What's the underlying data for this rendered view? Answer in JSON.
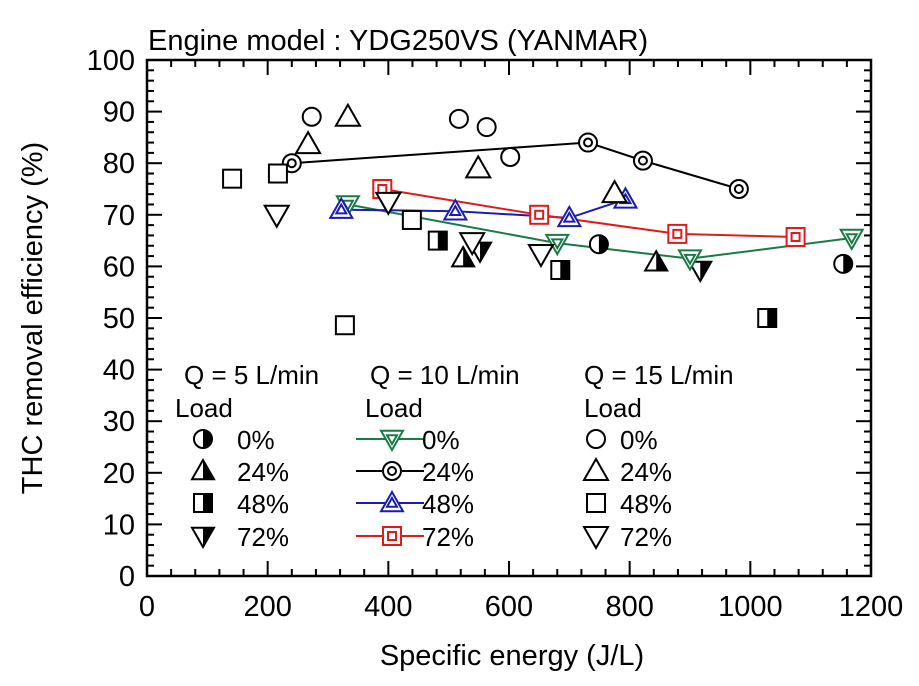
{
  "chart_data": {
    "type": "scatter",
    "title": "Engine model : YDG250VS (YANMAR)",
    "xlabel": "Specific energy (J/L)",
    "ylabel": "THC removal efficiency (%)",
    "xlim": [
      0,
      1200
    ],
    "ylim": [
      0,
      100
    ],
    "xticks": [
      0,
      200,
      400,
      600,
      800,
      1000,
      1200
    ],
    "yticks": [
      0,
      10,
      20,
      30,
      40,
      50,
      60,
      70,
      80,
      90,
      100
    ],
    "grid": false,
    "legend_placement": "lower-center",
    "legend_groups": [
      {
        "header": "Q = 5 L/min",
        "sub": "Load"
      },
      {
        "header": "Q = 10 L/min",
        "sub": "Load"
      },
      {
        "header": "Q = 15 L/min",
        "sub": "Load"
      }
    ],
    "series": [
      {
        "name": "Q=5 0%",
        "group": 0,
        "label": "0%",
        "marker": "circle-half",
        "color": "#000000",
        "line": false,
        "points": [
          [
            749,
            64.3
          ],
          [
            1154,
            60.5
          ]
        ]
      },
      {
        "name": "Q=5 24%",
        "group": 0,
        "label": "24%",
        "marker": "triangle-up-half",
        "color": "#000000",
        "line": false,
        "points": [
          [
            524,
            61.6
          ],
          [
            844,
            60.8
          ]
        ]
      },
      {
        "name": "Q=5 48%",
        "group": 0,
        "label": "48%",
        "marker": "square-half",
        "color": "#000000",
        "line": false,
        "points": [
          [
            482,
            65
          ],
          [
            685,
            59.3
          ],
          [
            1028,
            50
          ]
        ]
      },
      {
        "name": "Q=5 72%",
        "group": 0,
        "label": "72%",
        "marker": "triangle-down-half",
        "color": "#000000",
        "line": false,
        "points": [
          [
            552,
            63
          ],
          [
            917,
            59.3
          ]
        ]
      },
      {
        "name": "Q=10 0%",
        "group": 1,
        "label": "0%",
        "marker": "triangle-down-double",
        "color": "#1a7a45",
        "line": true,
        "points": [
          [
            333,
            72
          ],
          [
            680,
            64.5
          ],
          [
            900,
            61.5
          ],
          [
            1168,
            65.5
          ]
        ]
      },
      {
        "name": "Q=10 24%",
        "group": 1,
        "label": "24%",
        "marker": "circle-double",
        "color": "#000000",
        "line": true,
        "points": [
          [
            240,
            80
          ],
          [
            731,
            84
          ],
          [
            822,
            80.5
          ],
          [
            981,
            75
          ]
        ]
      },
      {
        "name": "Q=10 48%",
        "group": 1,
        "label": "48%",
        "marker": "triangle-up-double",
        "color": "#1a1ab4",
        "line": true,
        "points": [
          [
            322,
            71
          ],
          [
            511,
            70.7
          ],
          [
            700,
            69.4
          ],
          [
            793,
            73
          ]
        ]
      },
      {
        "name": "Q=10 72%",
        "group": 1,
        "label": "72%",
        "marker": "square-double",
        "color": "#e01b1b",
        "line": true,
        "points": [
          [
            390,
            75
          ],
          [
            650,
            70
          ],
          [
            879,
            66.3
          ],
          [
            1075,
            65.7
          ]
        ]
      },
      {
        "name": "Q=15 0%",
        "group": 2,
        "label": "0%",
        "marker": "circle-open",
        "color": "#000000",
        "line": false,
        "points": [
          [
            273,
            89
          ],
          [
            517,
            88.6
          ],
          [
            563,
            87
          ],
          [
            602,
            81.2
          ]
        ]
      },
      {
        "name": "Q=15 24%",
        "group": 2,
        "label": "24%",
        "marker": "triangle-up-open",
        "color": "#000000",
        "line": false,
        "points": [
          [
            267,
            83.7
          ],
          [
            333,
            89
          ],
          [
            549,
            79
          ],
          [
            775,
            74.2
          ]
        ]
      },
      {
        "name": "Q=15 48%",
        "group": 2,
        "label": "48%",
        "marker": "square-open",
        "color": "#000000",
        "line": false,
        "points": [
          [
            141,
            77
          ],
          [
            217,
            78
          ],
          [
            328,
            48.6
          ],
          [
            439,
            69
          ]
        ]
      },
      {
        "name": "Q=15 72%",
        "group": 2,
        "label": "72%",
        "marker": "triangle-down-open",
        "color": "#000000",
        "line": false,
        "points": [
          [
            215,
            70
          ],
          [
            400,
            72.5
          ],
          [
            539,
            64.7
          ],
          [
            653,
            62.4
          ]
        ]
      }
    ]
  }
}
